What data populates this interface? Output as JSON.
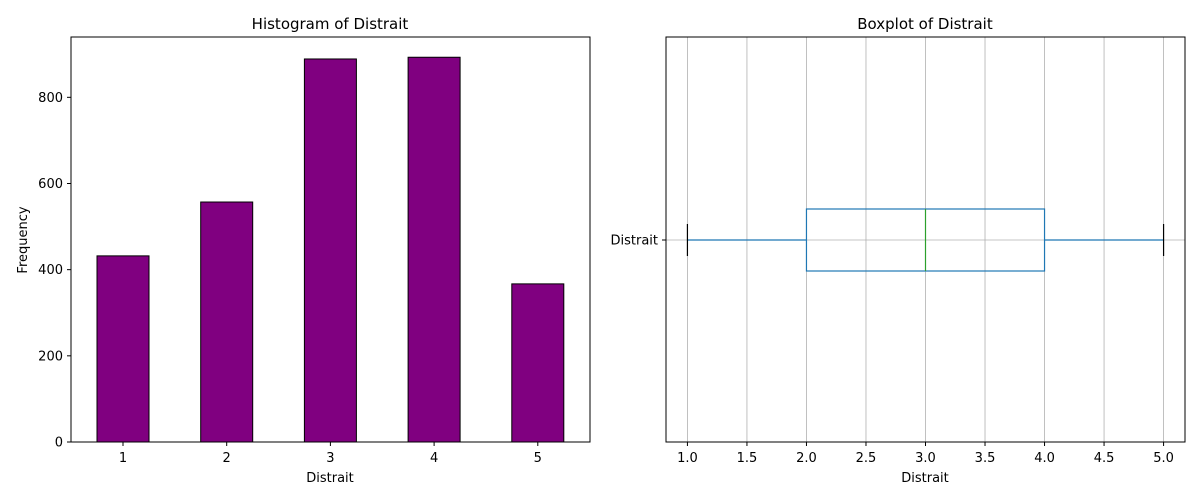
{
  "chart_data": [
    {
      "type": "bar",
      "title": "Histogram of Distrait",
      "xlabel": "Distrait",
      "ylabel": "Frequency",
      "categories": [
        "1",
        "2",
        "3",
        "4",
        "5"
      ],
      "values": [
        432,
        557,
        889,
        893,
        367
      ],
      "ylim": [
        0,
        940
      ],
      "yticks": [
        0,
        200,
        400,
        600,
        800
      ],
      "bar_color": "#800080",
      "edge_color": "#000000"
    },
    {
      "type": "boxplot",
      "title": "Boxplot of Distrait",
      "xlabel": "Distrait",
      "category": "Distrait",
      "stats": {
        "min": 1,
        "q1": 2,
        "median": 3,
        "q3": 4,
        "max": 5
      },
      "xlim": [
        0.82,
        5.18
      ],
      "xticks": [
        "1.0",
        "1.5",
        "2.0",
        "2.5",
        "3.0",
        "3.5",
        "4.0",
        "4.5",
        "5.0"
      ],
      "grid": true,
      "box_color": "#1f77b4",
      "median_color": "#2ca02c"
    }
  ]
}
